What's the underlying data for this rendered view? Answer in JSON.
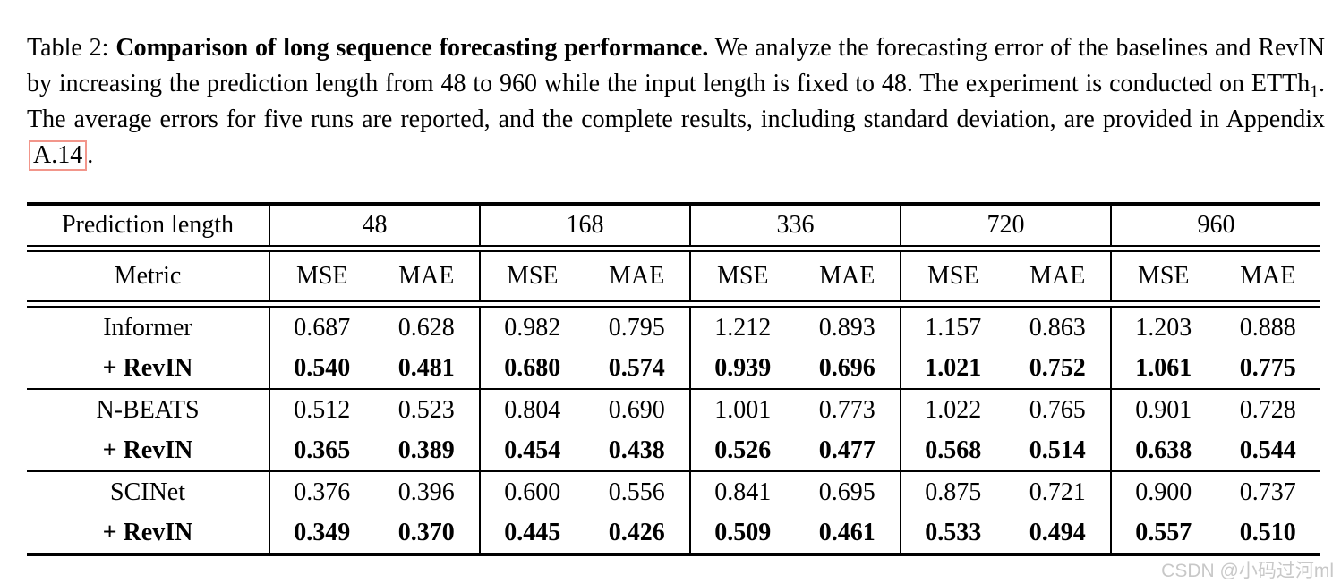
{
  "caption": {
    "prefix": "Table 2: ",
    "bold": "Comparison of long sequence forecasting performance.",
    "body_1": " We analyze the forecasting error of the baselines and RevIN by increasing the prediction length from 48 to 960 while the input length is fixed to 48. The experiment is conducted on ETTh",
    "subscript": "1",
    "body_2": ". The average errors for five runs are reported, and the complete results, including standard deviation, are provided in Appendix",
    "appendix_link": "A.14",
    "suffix": "."
  },
  "table": {
    "pred_label": "Prediction length",
    "metric_label": "Metric",
    "pred_lengths": [
      "48",
      "168",
      "336",
      "720",
      "960"
    ],
    "metrics": [
      "MSE",
      "MAE"
    ],
    "groups": [
      {
        "model": "Informer",
        "revin_label": "+ RevIN",
        "base": [
          "0.687",
          "0.628",
          "0.982",
          "0.795",
          "1.212",
          "0.893",
          "1.157",
          "0.863",
          "1.203",
          "0.888"
        ],
        "revin": [
          "0.540",
          "0.481",
          "0.680",
          "0.574",
          "0.939",
          "0.696",
          "1.021",
          "0.752",
          "1.061",
          "0.775"
        ]
      },
      {
        "model": "N-BEATS",
        "revin_label": "+ RevIN",
        "base": [
          "0.512",
          "0.523",
          "0.804",
          "0.690",
          "1.001",
          "0.773",
          "1.022",
          "0.765",
          "0.901",
          "0.728"
        ],
        "revin": [
          "0.365",
          "0.389",
          "0.454",
          "0.438",
          "0.526",
          "0.477",
          "0.568",
          "0.514",
          "0.638",
          "0.544"
        ]
      },
      {
        "model": "SCINet",
        "revin_label": "+ RevIN",
        "base": [
          "0.376",
          "0.396",
          "0.600",
          "0.556",
          "0.841",
          "0.695",
          "0.875",
          "0.721",
          "0.900",
          "0.737"
        ],
        "revin": [
          "0.349",
          "0.370",
          "0.445",
          "0.426",
          "0.509",
          "0.461",
          "0.533",
          "0.494",
          "0.557",
          "0.510"
        ]
      }
    ]
  },
  "watermark": "CSDN @小码过河ml"
}
